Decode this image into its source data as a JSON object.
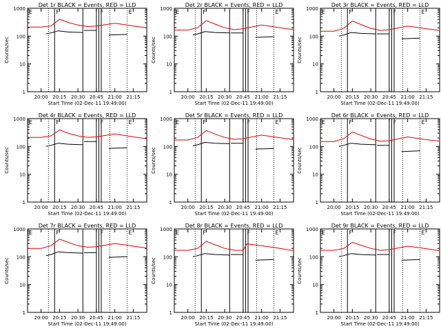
{
  "colors": {
    "events": "#000000",
    "lld": "#e00000",
    "axes": "#000000",
    "background": "#ffffff"
  },
  "axis": {
    "ylabel": "Counts/sec",
    "xlabel": "Start Time (02-Dec-11 19:49:00)",
    "ylim": [
      1,
      1000
    ],
    "y_scale": "log",
    "y_ticks": [
      1,
      10,
      100,
      1000
    ],
    "y_tick_labels": [
      "1",
      "10",
      "100",
      "1000"
    ],
    "xlim": [
      "19:49",
      "21:26"
    ],
    "x_ticks": [
      "20:00",
      "20:15",
      "20:30",
      "20:45",
      "21:00",
      "21:15"
    ],
    "x_tick_labels": [
      "20:00",
      "20:15",
      "20:30",
      "20:45",
      "21:00",
      "21:15"
    ]
  },
  "markers": {
    "dotted": [
      "20:06",
      "20:56",
      "21:10"
    ],
    "solid": [
      "20:11",
      "20:34",
      "20:45",
      "20:47",
      "20:49"
    ],
    "flag_labels": {
      "20:11": "F",
      "20:47": "F",
      "21:10": "E"
    }
  },
  "chart_data": [
    {
      "type": "line",
      "title": "Det 1r BLACK = Events, RED = LLD",
      "x": [
        "19:49",
        "20:00",
        "20:08",
        "20:15",
        "20:22",
        "20:30",
        "20:38",
        "20:45",
        "21:00",
        "21:10",
        "21:15",
        "21:26"
      ],
      "series": [
        {
          "name": "LLD",
          "values": [
            210,
            210,
            230,
            400,
            310,
            250,
            220,
            230,
            290,
            250,
            230,
            200
          ]
        },
        {
          "name": "Events",
          "segments": [
            {
              "x": [
                "20:04",
                "20:08",
                "20:14",
                "20:22",
                "20:34"
              ],
              "values": [
                120,
                130,
                155,
                140,
                135
              ]
            },
            {
              "x": [
                "20:35",
                "20:45"
              ],
              "values": [
                160,
                160
              ]
            },
            {
              "x": [
                "20:55",
                "21:10"
              ],
              "values": [
                110,
                115
              ]
            }
          ]
        }
      ]
    },
    {
      "type": "line",
      "title": "Det 2r BLACK = Events, RED = LLD",
      "x": [
        "19:49",
        "20:00",
        "20:08",
        "20:15",
        "20:22",
        "20:30",
        "20:38",
        "20:45",
        "21:00",
        "21:10",
        "21:15",
        "21:26"
      ],
      "series": [
        {
          "name": "LLD",
          "values": [
            165,
            165,
            200,
            360,
            270,
            200,
            170,
            185,
            250,
            215,
            200,
            170
          ]
        },
        {
          "name": "Events",
          "segments": [
            {
              "x": [
                "20:04",
                "20:08",
                "20:14",
                "20:22",
                "20:34"
              ],
              "values": [
                110,
                120,
                145,
                135,
                130
              ]
            },
            {
              "x": [
                "20:35",
                "20:45"
              ],
              "values": [
                130,
                130
              ]
            },
            {
              "x": [
                "20:55",
                "21:10"
              ],
              "values": [
                90,
                95
              ]
            }
          ]
        }
      ]
    },
    {
      "type": "line",
      "title": "Det 3r BLACK = Events, RED = LLD",
      "x": [
        "19:49",
        "20:00",
        "20:08",
        "20:15",
        "20:22",
        "20:30",
        "20:38",
        "20:45",
        "21:00",
        "21:10",
        "21:15",
        "21:26"
      ],
      "series": [
        {
          "name": "LLD",
          "values": [
            150,
            150,
            190,
            350,
            260,
            190,
            160,
            170,
            230,
            200,
            185,
            160
          ]
        },
        {
          "name": "Events",
          "segments": [
            {
              "x": [
                "20:04",
                "20:08",
                "20:14",
                "20:22",
                "20:34"
              ],
              "values": [
                100,
                110,
                135,
                125,
                120
              ]
            },
            {
              "x": [
                "20:35",
                "20:45"
              ],
              "values": [
                120,
                120
              ]
            },
            {
              "x": [
                "20:55",
                "21:10"
              ],
              "values": [
                80,
                85
              ]
            }
          ]
        }
      ]
    },
    {
      "type": "line",
      "title": "Det 4r BLACK = Events, RED = LLD",
      "x": [
        "19:49",
        "20:00",
        "20:08",
        "20:15",
        "20:22",
        "20:30",
        "20:38",
        "20:45",
        "21:00",
        "21:10",
        "21:15",
        "21:26"
      ],
      "series": [
        {
          "name": "LLD",
          "values": [
            210,
            210,
            240,
            390,
            300,
            240,
            210,
            220,
            280,
            240,
            220,
            190
          ]
        },
        {
          "name": "Events",
          "segments": [
            {
              "x": [
                "20:04",
                "20:08",
                "20:14",
                "20:22",
                "20:34"
              ],
              "values": [
                100,
                110,
                130,
                120,
                115
              ]
            },
            {
              "x": [
                "20:35",
                "20:45"
              ],
              "values": [
                150,
                150
              ]
            },
            {
              "x": [
                "20:55",
                "21:10"
              ],
              "values": [
                85,
                90
              ]
            }
          ]
        }
      ]
    },
    {
      "type": "line",
      "title": "Det 5r BLACK = Events, RED = LLD",
      "x": [
        "19:49",
        "20:00",
        "20:08",
        "20:15",
        "20:22",
        "20:30",
        "20:38",
        "20:45",
        "21:00",
        "21:10",
        "21:15",
        "21:26"
      ],
      "series": [
        {
          "name": "LLD",
          "values": [
            170,
            170,
            210,
            370,
            280,
            210,
            180,
            190,
            255,
            220,
            205,
            175
          ]
        },
        {
          "name": "Events",
          "segments": [
            {
              "x": [
                "20:04",
                "20:08",
                "20:14",
                "20:22",
                "20:34"
              ],
              "values": [
                105,
                115,
                140,
                130,
                125
              ]
            },
            {
              "x": [
                "20:35",
                "20:45"
              ],
              "values": [
                130,
                130
              ]
            },
            {
              "x": [
                "20:55",
                "21:10"
              ],
              "values": [
                80,
                85
              ]
            }
          ]
        }
      ]
    },
    {
      "type": "line",
      "title": "Det 6r BLACK = Events, RED = LLD",
      "x": [
        "19:49",
        "20:00",
        "20:08",
        "20:15",
        "20:22",
        "20:30",
        "20:38",
        "20:45",
        "21:00",
        "21:10",
        "21:15",
        "21:26"
      ],
      "series": [
        {
          "name": "LLD",
          "values": [
            150,
            150,
            190,
            330,
            250,
            185,
            155,
            160,
            220,
            190,
            175,
            155
          ]
        },
        {
          "name": "Events",
          "segments": [
            {
              "x": [
                "20:04",
                "20:08",
                "20:14",
                "20:22",
                "20:34"
              ],
              "values": [
                100,
                110,
                130,
                120,
                115
              ]
            },
            {
              "x": [
                "20:35",
                "20:45"
              ],
              "values": [
                110,
                110
              ]
            },
            {
              "x": [
                "20:55",
                "21:10"
              ],
              "values": [
                65,
                70
              ]
            }
          ]
        }
      ]
    },
    {
      "type": "line",
      "title": "Det 7r BLACK = Events, RED = LLD",
      "x": [
        "19:49",
        "20:00",
        "20:08",
        "20:15",
        "20:22",
        "20:30",
        "20:38",
        "20:45",
        "21:00",
        "21:10",
        "21:15",
        "21:26"
      ],
      "series": [
        {
          "name": "LLD",
          "values": [
            200,
            200,
            250,
            430,
            330,
            250,
            220,
            230,
            300,
            260,
            240,
            205
          ]
        },
        {
          "name": "Events",
          "segments": [
            {
              "x": [
                "20:04",
                "20:08",
                "20:14",
                "20:22",
                "20:34"
              ],
              "values": [
                110,
                120,
                150,
                140,
                135
              ]
            },
            {
              "x": [
                "20:35",
                "20:45"
              ],
              "values": [
                140,
                140
              ]
            },
            {
              "x": [
                "20:55",
                "21:10"
              ],
              "values": [
                95,
                100
              ]
            }
          ]
        }
      ]
    },
    {
      "type": "line",
      "title": "Det 8r BLACK = Events, RED = LLD",
      "x": [
        "19:49",
        "20:00",
        "20:08",
        "20:15",
        "20:22",
        "20:30",
        "20:38",
        "20:45",
        "20:48",
        "21:00",
        "21:10",
        "21:15",
        "21:26"
      ],
      "series": [
        {
          "name": "LLD",
          "values": [
            170,
            170,
            200,
            360,
            270,
            200,
            170,
            170,
            290,
            250,
            215,
            200,
            165
          ]
        },
        {
          "name": "Events",
          "segments": [
            {
              "x": [
                "20:04",
                "20:08",
                "20:14",
                "20:22",
                "20:34"
              ],
              "values": [
                100,
                110,
                130,
                120,
                115
              ]
            },
            {
              "x": [
                "20:35",
                "20:45"
              ],
              "values": [
                120,
                120
              ]
            },
            {
              "x": [
                "20:55",
                "21:10"
              ],
              "values": [
                75,
                80
              ]
            }
          ]
        }
      ]
    },
    {
      "type": "line",
      "title": "Det 9r BLACK = Events, RED = LLD",
      "x": [
        "19:49",
        "20:00",
        "20:08",
        "20:15",
        "20:22",
        "20:30",
        "20:38",
        "20:45",
        "21:00",
        "21:10",
        "21:15",
        "21:26"
      ],
      "series": [
        {
          "name": "LLD",
          "values": [
            170,
            170,
            200,
            330,
            260,
            200,
            170,
            180,
            240,
            210,
            195,
            165
          ]
        },
        {
          "name": "Events",
          "segments": [
            {
              "x": [
                "20:04",
                "20:08",
                "20:14",
                "20:22",
                "20:34"
              ],
              "values": [
                100,
                110,
                130,
                120,
                115
              ]
            },
            {
              "x": [
                "20:35",
                "20:45"
              ],
              "values": [
                120,
                120
              ]
            },
            {
              "x": [
                "20:55",
                "21:10"
              ],
              "values": [
                75,
                80
              ]
            }
          ]
        }
      ]
    }
  ]
}
